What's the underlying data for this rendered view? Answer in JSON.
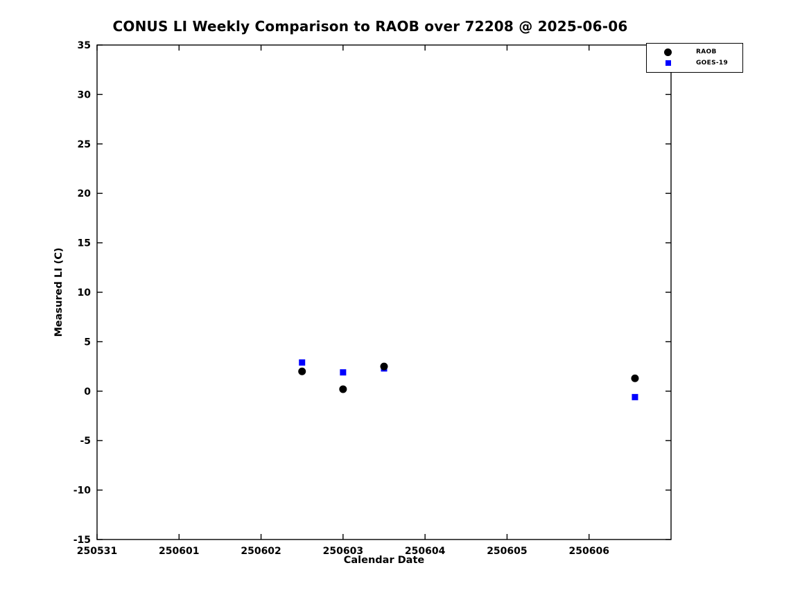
{
  "chart_data": {
    "type": "scatter",
    "title": "CONUS LI Weekly Comparison to RAOB over 72208 @ 2025-06-06",
    "xlabel": "Calendar Date",
    "ylabel": "Measured LI (C)",
    "x_ticks": [
      {
        "pos": 0,
        "label": "250531"
      },
      {
        "pos": 1,
        "label": "250601"
      },
      {
        "pos": 2,
        "label": "250602"
      },
      {
        "pos": 3,
        "label": "250603"
      },
      {
        "pos": 4,
        "label": "250604"
      },
      {
        "pos": 5,
        "label": "250605"
      },
      {
        "pos": 6,
        "label": "250606"
      }
    ],
    "xlim": [
      0,
      7
    ],
    "ylim": [
      -15,
      35
    ],
    "y_ticks": [
      -15,
      -10,
      -5,
      0,
      5,
      10,
      15,
      20,
      25,
      30,
      35
    ],
    "grid": false,
    "series": [
      {
        "name": "RAOB",
        "marker": "circle",
        "color": "#000000",
        "x": [
          2.5,
          3.0,
          3.5,
          6.56
        ],
        "y": [
          2.0,
          0.2,
          2.5,
          1.3
        ]
      },
      {
        "name": "GOES-19",
        "marker": "square",
        "color": "#0000ff",
        "x": [
          2.5,
          3.0,
          3.5,
          6.56
        ],
        "y": [
          2.9,
          1.9,
          2.3,
          -0.6
        ]
      }
    ],
    "legend": {
      "position": "top-right",
      "entries": [
        "RAOB",
        "GOES-19"
      ]
    }
  },
  "colors": {
    "background": "#ffffff",
    "axis": "#000000",
    "raob": "#000000",
    "goes19": "#0000ff"
  }
}
